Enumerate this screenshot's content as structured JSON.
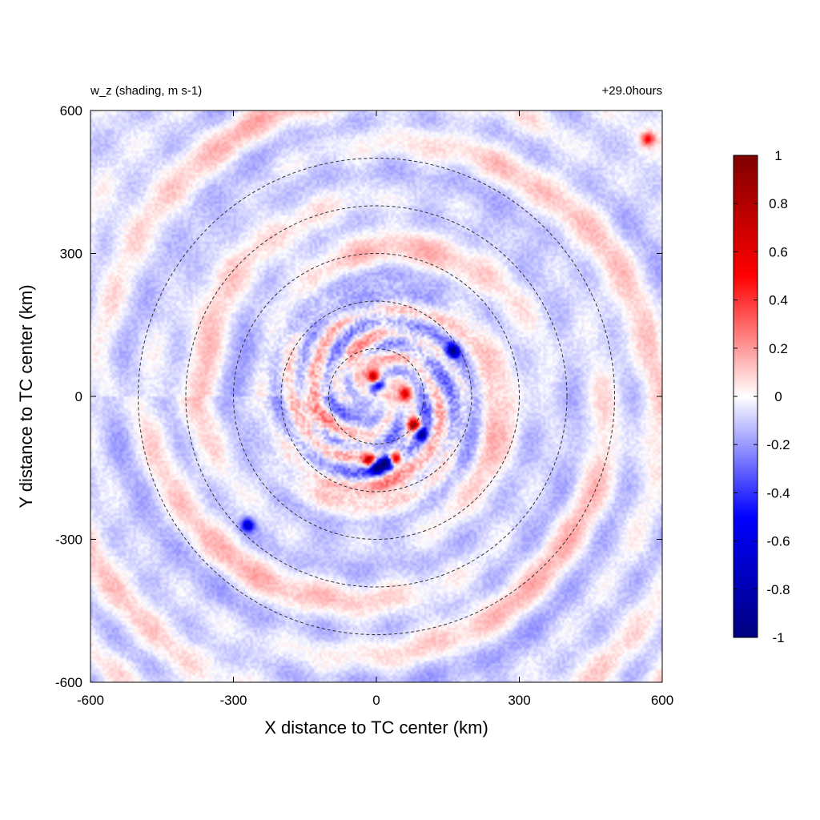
{
  "chart_data": {
    "type": "heatmap",
    "title_left": "w_z (shading, m s-1)",
    "title_right": "+29.0hours",
    "xlabel": "X distance to TC center (km)",
    "ylabel": "Y distance to TC center (km)",
    "xlim": [
      -600,
      600
    ],
    "ylim": [
      -600,
      600
    ],
    "xticks": [
      -600,
      -300,
      0,
      300,
      600
    ],
    "yticks": [
      -600,
      -300,
      0,
      300,
      600
    ],
    "xtick_labels": [
      "-600",
      "-300",
      "0",
      "300",
      "600"
    ],
    "ytick_labels": [
      "-600",
      "-300",
      "0",
      "300",
      "600"
    ],
    "range_circles_km": [
      100,
      200,
      300,
      400,
      500
    ],
    "circle_color": "#333333",
    "colorbar": {
      "vmin": -1,
      "vmax": 1,
      "ticks": [
        1,
        0.8,
        0.6,
        0.4,
        0.2,
        0,
        -0.2,
        -0.4,
        -0.6,
        -0.8,
        -1
      ],
      "tick_labels": [
        "1",
        "0.8",
        "0.6",
        "0.4",
        "0.2",
        "0",
        "-0.2",
        "-0.4",
        "-0.6",
        "-0.8",
        "-1"
      ],
      "colors": [
        "#00007f",
        "#0000ff",
        "#ffffff",
        "#ff0000",
        "#7f0000"
      ]
    },
    "features": [
      {
        "x": -5,
        "y": 40,
        "value": 0.95
      },
      {
        "x": 5,
        "y": 25,
        "value": -0.6
      },
      {
        "x": 20,
        "y": -140,
        "value": -0.9
      },
      {
        "x": 40,
        "y": -130,
        "value": 0.9
      },
      {
        "x": -15,
        "y": -135,
        "value": 0.8
      },
      {
        "x": 0,
        "y": -150,
        "value": -0.8
      },
      {
        "x": 80,
        "y": -60,
        "value": 0.9
      },
      {
        "x": 95,
        "y": -80,
        "value": -0.7
      },
      {
        "x": 60,
        "y": 5,
        "value": 0.6
      },
      {
        "x": 160,
        "y": 95,
        "value": -0.7
      },
      {
        "x": -270,
        "y": -270,
        "value": -0.6
      },
      {
        "x": 570,
        "y": 540,
        "value": 0.5
      }
    ]
  }
}
